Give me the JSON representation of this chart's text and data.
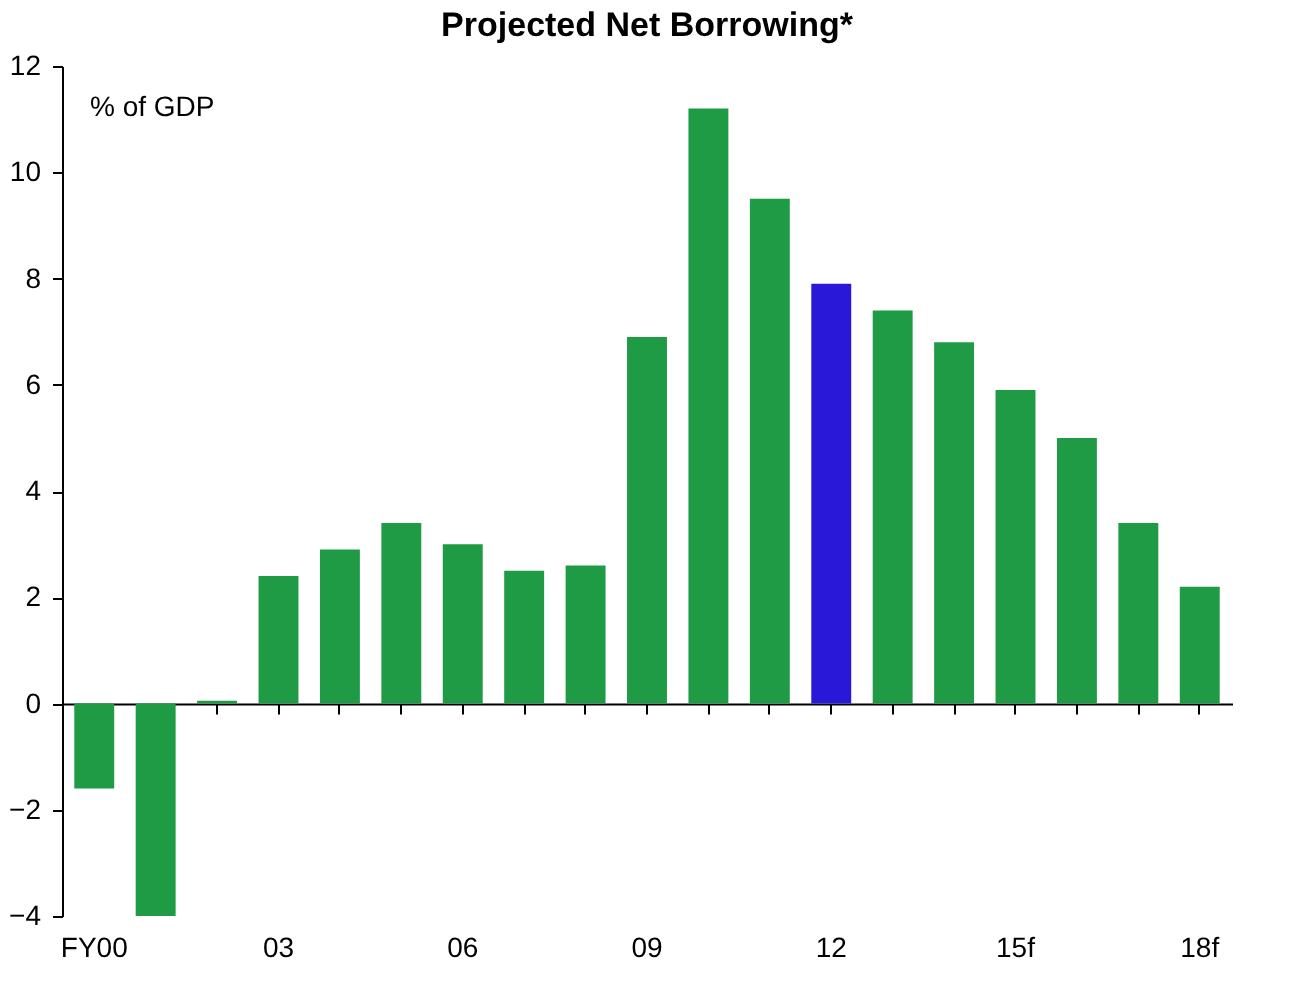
{
  "chart_data": {
    "type": "bar",
    "title": "Projected Net Borrowing*",
    "annotations": [
      "% of GDP"
    ],
    "categories": [
      "FY00",
      null,
      null,
      "03",
      null,
      null,
      "06",
      null,
      null,
      "09",
      null,
      null,
      "12",
      null,
      null,
      "15f",
      null,
      null,
      "18f"
    ],
    "values": [
      -1.6,
      -4.0,
      0.05,
      2.4,
      2.9,
      3.4,
      3.0,
      2.5,
      2.6,
      6.9,
      11.2,
      9.5,
      7.9,
      7.4,
      6.8,
      5.9,
      5.0,
      3.4,
      2.2
    ],
    "colors": [
      "#1f9a45",
      "#1f9a45",
      "#1f9a45",
      "#1f9a45",
      "#1f9a45",
      "#1f9a45",
      "#1f9a45",
      "#1f9a45",
      "#1f9a45",
      "#1f9a45",
      "#1f9a45",
      "#1f9a45",
      "#2a18d8",
      "#1f9a45",
      "#1f9a45",
      "#1f9a45",
      "#1f9a45",
      "#1f9a45",
      "#1f9a45"
    ],
    "ylim": [
      -4,
      12
    ],
    "yticks": [
      -4,
      -2,
      0,
      2,
      4,
      6,
      8,
      10,
      12
    ]
  }
}
